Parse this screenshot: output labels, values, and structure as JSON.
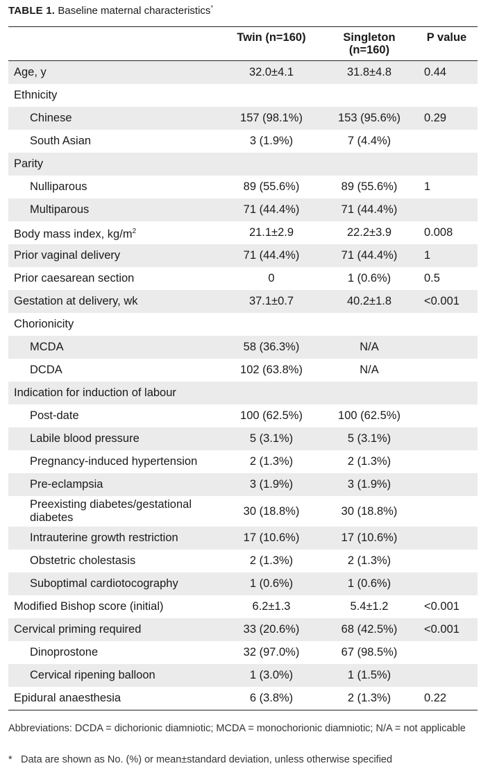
{
  "caption": {
    "label": "TABLE 1.",
    "text": "Baseline maternal characteristics",
    "mark": "*"
  },
  "columns": [
    "",
    "Twin (n=160)",
    "Singleton (n=160)",
    "P value"
  ],
  "rows": [
    {
      "label": "Age, y",
      "twin": "32.0±4.1",
      "singleton": "31.8±4.8",
      "p": "0.44",
      "indent": false,
      "shade": true
    },
    {
      "label": "Ethnicity",
      "twin": "",
      "singleton": "",
      "p": "",
      "indent": false,
      "shade": false
    },
    {
      "label": "Chinese",
      "twin": "157 (98.1%)",
      "singleton": "153 (95.6%)",
      "p": "0.29",
      "indent": true,
      "shade": true
    },
    {
      "label": "South Asian",
      "twin": "3 (1.9%)",
      "singleton": "7 (4.4%)",
      "p": "",
      "indent": true,
      "shade": false
    },
    {
      "label": "Parity",
      "twin": "",
      "singleton": "",
      "p": "",
      "indent": false,
      "shade": true
    },
    {
      "label": "Nulliparous",
      "twin": "89 (55.6%)",
      "singleton": "89 (55.6%)",
      "p": "1",
      "indent": true,
      "shade": false
    },
    {
      "label": "Multiparous",
      "twin": "71 (44.4%)",
      "singleton": "71 (44.4%)",
      "p": "",
      "indent": true,
      "shade": true
    },
    {
      "label": "Body mass index, kg/m",
      "sup": "2",
      "twin": "21.1±2.9",
      "singleton": "22.2±3.9",
      "p": "0.008",
      "indent": false,
      "shade": false
    },
    {
      "label": "Prior vaginal delivery",
      "twin": "71 (44.4%)",
      "singleton": "71 (44.4%)",
      "p": "1",
      "indent": false,
      "shade": true
    },
    {
      "label": "Prior caesarean section",
      "twin": "0",
      "singleton": "1 (0.6%)",
      "p": "0.5",
      "indent": false,
      "shade": false
    },
    {
      "label": "Gestation at delivery, wk",
      "twin": "37.1±0.7",
      "singleton": "40.2±1.8",
      "p": "<0.001",
      "indent": false,
      "shade": true
    },
    {
      "label": "Chorionicity",
      "twin": "",
      "singleton": "",
      "p": "",
      "indent": false,
      "shade": false
    },
    {
      "label": "MCDA",
      "twin": "58 (36.3%)",
      "singleton": "N/A",
      "p": "",
      "indent": true,
      "shade": true
    },
    {
      "label": "DCDA",
      "twin": "102 (63.8%)",
      "singleton": "N/A",
      "p": "",
      "indent": true,
      "shade": false
    },
    {
      "label": "Indication for induction of labour",
      "twin": "",
      "singleton": "",
      "p": "",
      "indent": false,
      "shade": true
    },
    {
      "label": "Post-date",
      "twin": "100 (62.5%)",
      "singleton": "100 (62.5%)",
      "p": "",
      "indent": true,
      "shade": false
    },
    {
      "label": "Labile blood pressure",
      "twin": "5 (3.1%)",
      "singleton": "5 (3.1%)",
      "p": "",
      "indent": true,
      "shade": true
    },
    {
      "label": "Pregnancy-induced hypertension",
      "twin": "2 (1.3%)",
      "singleton": "2 (1.3%)",
      "p": "",
      "indent": true,
      "shade": false
    },
    {
      "label": "Pre-eclampsia",
      "twin": "3 (1.9%)",
      "singleton": "3 (1.9%)",
      "p": "",
      "indent": true,
      "shade": true
    },
    {
      "label": "Preexisting diabetes/gestational diabetes",
      "twin": "30 (18.8%)",
      "singleton": "30 (18.8%)",
      "p": "",
      "indent": true,
      "shade": false,
      "tall": true
    },
    {
      "label": "Intrauterine growth restriction",
      "twin": "17 (10.6%)",
      "singleton": "17 (10.6%)",
      "p": "",
      "indent": true,
      "shade": true
    },
    {
      "label": "Obstetric cholestasis",
      "twin": "2 (1.3%)",
      "singleton": "2 (1.3%)",
      "p": "",
      "indent": true,
      "shade": false
    },
    {
      "label": "Suboptimal cardiotocography",
      "twin": "1 (0.6%)",
      "singleton": "1 (0.6%)",
      "p": "",
      "indent": true,
      "shade": true
    },
    {
      "label": "Modified Bishop score (initial)",
      "twin": "6.2±1.3",
      "singleton": "5.4±1.2",
      "p": "<0.001",
      "indent": false,
      "shade": false
    },
    {
      "label": "Cervical priming required",
      "twin": "33 (20.6%)",
      "singleton": "68 (42.5%)",
      "p": "<0.001",
      "indent": false,
      "shade": true
    },
    {
      "label": "Dinoprostone",
      "twin": "32 (97.0%)",
      "singleton": "67 (98.5%)",
      "p": "",
      "indent": true,
      "shade": false
    },
    {
      "label": "Cervical ripening balloon",
      "twin": "1 (3.0%)",
      "singleton": "1 (1.5%)",
      "p": "",
      "indent": true,
      "shade": true
    },
    {
      "label": "Epidural anaesthesia",
      "twin": "6 (3.8%)",
      "singleton": "2 (1.3%)",
      "p": "0.22",
      "indent": false,
      "shade": false
    }
  ],
  "footnotes": {
    "abbreviations": "Abbreviations: DCDA = dichorionic diamniotic; MCDA = monochorionic diamniotic; N/A = not applicable",
    "mark": "*",
    "note": "Data are shown as No. (%) or mean±standard deviation, unless otherwise specified"
  },
  "colors": {
    "shade": "#ebebeb",
    "rule": "#222222",
    "text": "#1a1a1a"
  }
}
